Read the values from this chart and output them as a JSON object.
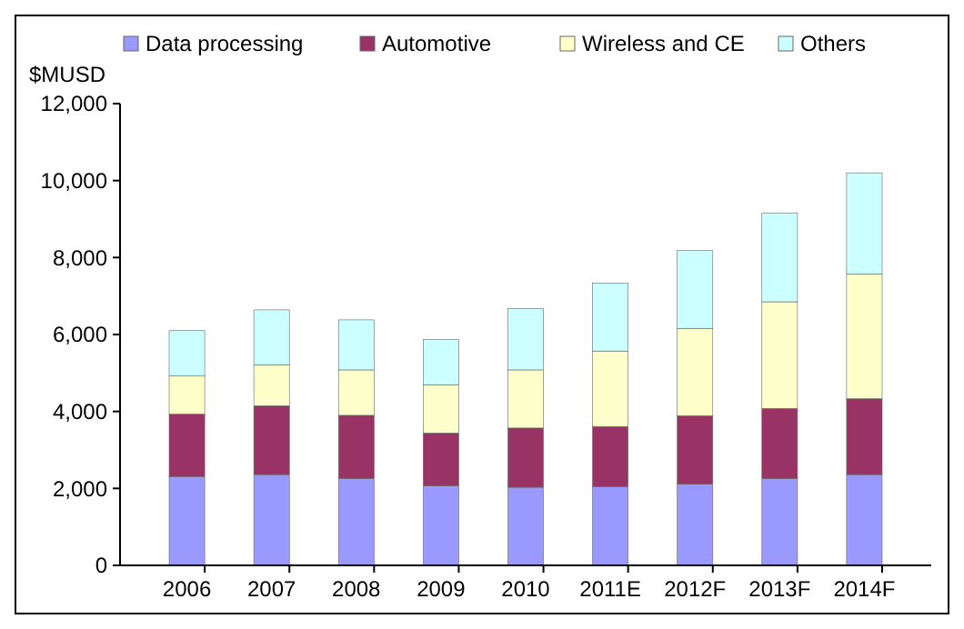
{
  "chart_data": {
    "type": "bar",
    "stacked": true,
    "ylabel": "$MUSD",
    "categories": [
      "2006",
      "2007",
      "2008",
      "2009",
      "2010",
      "2011E",
      "2012F",
      "2013F",
      "2014F"
    ],
    "series": [
      {
        "name": "Data processing",
        "color": "#9999ff",
        "values": [
          2310,
          2360,
          2260,
          2070,
          2030,
          2050,
          2110,
          2260,
          2360
        ]
      },
      {
        "name": "Automotive",
        "color": "#993366",
        "values": [
          1620,
          1790,
          1640,
          1370,
          1540,
          1560,
          1780,
          1820,
          1970
        ]
      },
      {
        "name": "Wireless and CE",
        "color": "#ffffcc",
        "values": [
          990,
          1060,
          1180,
          1250,
          1510,
          1960,
          2270,
          2770,
          3240
        ]
      },
      {
        "name": "Others",
        "color": "#ccffff",
        "values": [
          1180,
          1430,
          1300,
          1180,
          1590,
          1770,
          2020,
          2310,
          2630
        ]
      }
    ],
    "ylim": [
      0,
      12000
    ],
    "yticks": [
      {
        "value": 0,
        "label": "0"
      },
      {
        "value": 2000,
        "label": "2,000"
      },
      {
        "value": 4000,
        "label": "4,000"
      },
      {
        "value": 6000,
        "label": "6,000"
      },
      {
        "value": 8000,
        "label": "8,000"
      },
      {
        "value": 10000,
        "label": "10,000"
      },
      {
        "value": 12000,
        "label": "12,000"
      }
    ],
    "legend": "top"
  }
}
